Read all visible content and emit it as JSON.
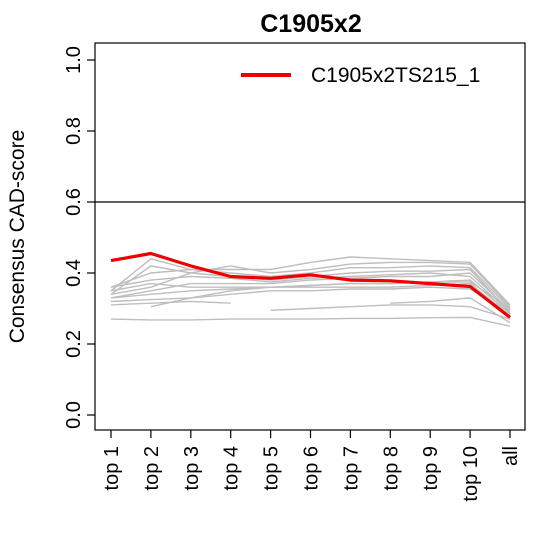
{
  "chart_data": {
    "type": "line",
    "title": "C1905x2",
    "xlabel": "",
    "ylabel": "Consensus CAD-score",
    "categories": [
      "top 1",
      "top 2",
      "top 3",
      "top 4",
      "top 5",
      "top 6",
      "top 7",
      "top 8",
      "top 9",
      "top 10",
      "all"
    ],
    "ylim": [
      0,
      1
    ],
    "yticks": [
      "0.0",
      "0.2",
      "0.4",
      "0.6",
      "0.8",
      "1.0"
    ],
    "reference_line": 0.6,
    "grid": false,
    "legend_position": "top-right",
    "highlight": {
      "name": "C1905x2TS215_1",
      "color": "#ee0000",
      "values": [
        0.435,
        0.455,
        0.42,
        0.39,
        0.385,
        0.395,
        0.38,
        0.378,
        0.37,
        0.362,
        0.275
      ]
    },
    "background_color": "#bebebe",
    "background_series": [
      {
        "values": [
          0.35,
          0.44,
          0.41,
          0.41,
          0.41,
          0.43,
          0.445,
          0.44,
          0.435,
          0.43,
          0.31
        ]
      },
      {
        "values": [
          0.34,
          0.42,
          0.4,
          0.42,
          0.4,
          0.41,
          0.425,
          0.43,
          0.43,
          0.425,
          0.305
        ]
      },
      {
        "values": [
          0.36,
          0.4,
          0.41,
          0.4,
          0.39,
          0.4,
          0.415,
          0.415,
          0.42,
          0.415,
          0.3
        ]
      },
      {
        "values": [
          0.34,
          0.36,
          0.4,
          0.39,
          0.38,
          0.39,
          0.4,
          0.405,
          0.405,
          0.41,
          0.29
        ]
      },
      {
        "values": [
          0.33,
          0.35,
          0.37,
          0.37,
          0.37,
          0.38,
          0.385,
          0.39,
          0.39,
          0.4,
          0.295
        ]
      },
      {
        "values": [
          0.35,
          0.37,
          0.36,
          0.36,
          0.36,
          0.365,
          0.37,
          0.37,
          0.375,
          0.375,
          0.3
        ]
      },
      {
        "values": [
          0.33,
          0.34,
          0.35,
          0.355,
          0.36,
          0.36,
          0.36,
          0.36,
          0.365,
          0.37,
          0.28
        ]
      },
      {
        "values": [
          0.32,
          0.325,
          0.33,
          0.34,
          0.35,
          0.35,
          0.355,
          0.355,
          0.36,
          0.355,
          0.29
        ]
      },
      {
        "values": [
          0.31,
          0.315,
          0.32,
          0.315,
          null,
          null,
          null,
          null,
          null,
          null,
          null
        ]
      },
      {
        "values": [
          null,
          0.305,
          0.33,
          0.35,
          0.36,
          0.365,
          0.37,
          0.37,
          0.375,
          0.38,
          0.285
        ]
      },
      {
        "values": [
          null,
          null,
          null,
          null,
          0.295,
          0.3,
          0.305,
          0.31,
          0.31,
          0.305,
          0.27
        ]
      },
      {
        "values": [
          null,
          null,
          null,
          null,
          null,
          null,
          null,
          0.315,
          0.32,
          0.33,
          0.26
        ]
      },
      {
        "values": [
          0.27,
          0.268,
          0.268,
          0.27,
          0.27,
          0.27,
          0.272,
          0.272,
          0.274,
          0.275,
          0.25
        ]
      },
      {
        "values": [
          0.36,
          0.38,
          0.39,
          0.385,
          0.375,
          0.385,
          0.39,
          0.395,
          0.4,
          0.39,
          0.29
        ]
      }
    ]
  }
}
